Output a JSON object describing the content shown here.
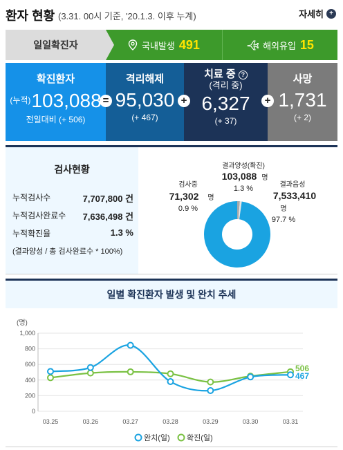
{
  "header": {
    "title": "환자 현황",
    "subtitle": "(3.31. 00시 기준, '20.1.3. 이후 누계)",
    "more_label": "자세히",
    "more_icon": "+"
  },
  "daily": {
    "label": "일일확진자",
    "domestic_label": "국내발생",
    "domestic_value": "491",
    "overseas_label": "해외유입",
    "overseas_value": "15"
  },
  "stats": {
    "confirmed": {
      "title": "확진환자",
      "prefix": "(누적)",
      "value": "103,088",
      "diff": "전일대비 (+ 506)"
    },
    "released": {
      "title": "격리해제",
      "value": "95,030",
      "diff": "(+ 467)"
    },
    "treating": {
      "title": "치료 중",
      "help": "?",
      "sub": "(격리 중)",
      "value": "6,327",
      "diff": "(+ 37)"
    },
    "deaths": {
      "title": "사망",
      "value": "1,731",
      "diff": "(+ 2)"
    },
    "op_equals": "=",
    "op_plus": "+"
  },
  "tests": {
    "title": "검사현황",
    "rows": [
      {
        "label": "누적검사수",
        "value": "7,707,800 건"
      },
      {
        "label": "누적검사완료수",
        "value": "7,636,498 건"
      },
      {
        "label": "누적확진율",
        "value": "1.3 %"
      }
    ],
    "note": "(결과양성 / 총 검사완료수 * 100%)",
    "donut": {
      "positive": {
        "label": "결과양성(확진)",
        "value": "103,088",
        "unit": "명",
        "pct": "1.3 %",
        "fraction": 0.013,
        "color": "#aaaaaa"
      },
      "testing": {
        "label": "검사중",
        "value": "71,302",
        "unit": "명",
        "pct": "0.9 %",
        "fraction": 0.009,
        "color": "#e6e6e6"
      },
      "negative": {
        "label": "결과음성",
        "value": "7,533,410",
        "unit": "명",
        "pct": "97.7 %",
        "fraction": 0.977,
        "color": "#1aa3e1"
      }
    }
  },
  "trend": {
    "title": "일별 확진환자 발생 및 완치 추세"
  },
  "chart_data": {
    "type": "line",
    "title": "일별 확진환자 발생 및 완치 추세",
    "ylabel": "(명)",
    "ylim": [
      0,
      1000
    ],
    "yticks": [
      "0",
      "200",
      "400",
      "600",
      "800",
      "1,000"
    ],
    "categories": [
      "03.25",
      "03.26",
      "03.27",
      "03.28",
      "03.29",
      "03.30",
      "03.31"
    ],
    "series": [
      {
        "name": "완치(일)",
        "color": "#1aa3e1",
        "values": [
          510,
          560,
          845,
          380,
          265,
          440,
          467
        ]
      },
      {
        "name": "확진(일)",
        "color": "#7ac143",
        "values": [
          430,
          490,
          505,
          480,
          375,
          450,
          506
        ]
      }
    ],
    "end_labels": [
      "467",
      "506"
    ],
    "grid": true,
    "legend": "bottom"
  }
}
